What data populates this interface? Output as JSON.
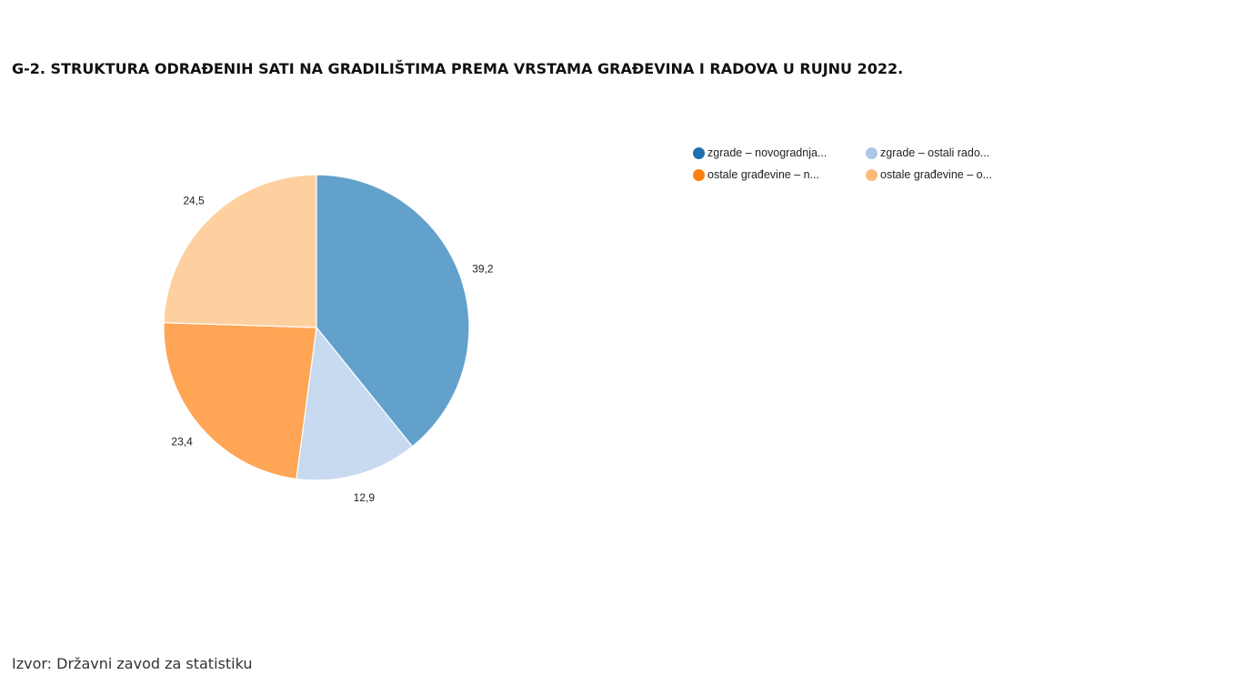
{
  "title": "G-2. STRUKTURA ODRAĐENIH SATI NA GRADILIŠTIMA PREMA VRSTAMA GRAĐEVINA I RADOVA U RUJNU 2022.",
  "source": "Izvor: Državni zavod za statistiku",
  "chart_data": {
    "type": "pie",
    "title": "G-2. STRUKTURA ODRAĐENIH SATI NA GRADILIŠTIMA PREMA VRSTAMA GRAĐEVINA I RADOVA U RUJNU 2022.",
    "legend_position": "top-right",
    "slices": [
      {
        "name": "zgrade – novogradnja...",
        "value": 39.2,
        "label": "39,2",
        "color": "#62a1cb",
        "legend_color": "#1f6faf"
      },
      {
        "name": "zgrade – ostali rado...",
        "value": 12.9,
        "label": "12,9",
        "color": "#c8daf0",
        "legend_color": "#aec7e8"
      },
      {
        "name": "ostale građevine – n...",
        "value": 23.4,
        "label": "23,4",
        "color": "#ffa556",
        "legend_color": "#ff7f0e"
      },
      {
        "name": "ostale građevine – o...",
        "value": 24.5,
        "label": "24,5",
        "color": "#fed09f",
        "legend_color": "#ffbb78"
      }
    ]
  }
}
